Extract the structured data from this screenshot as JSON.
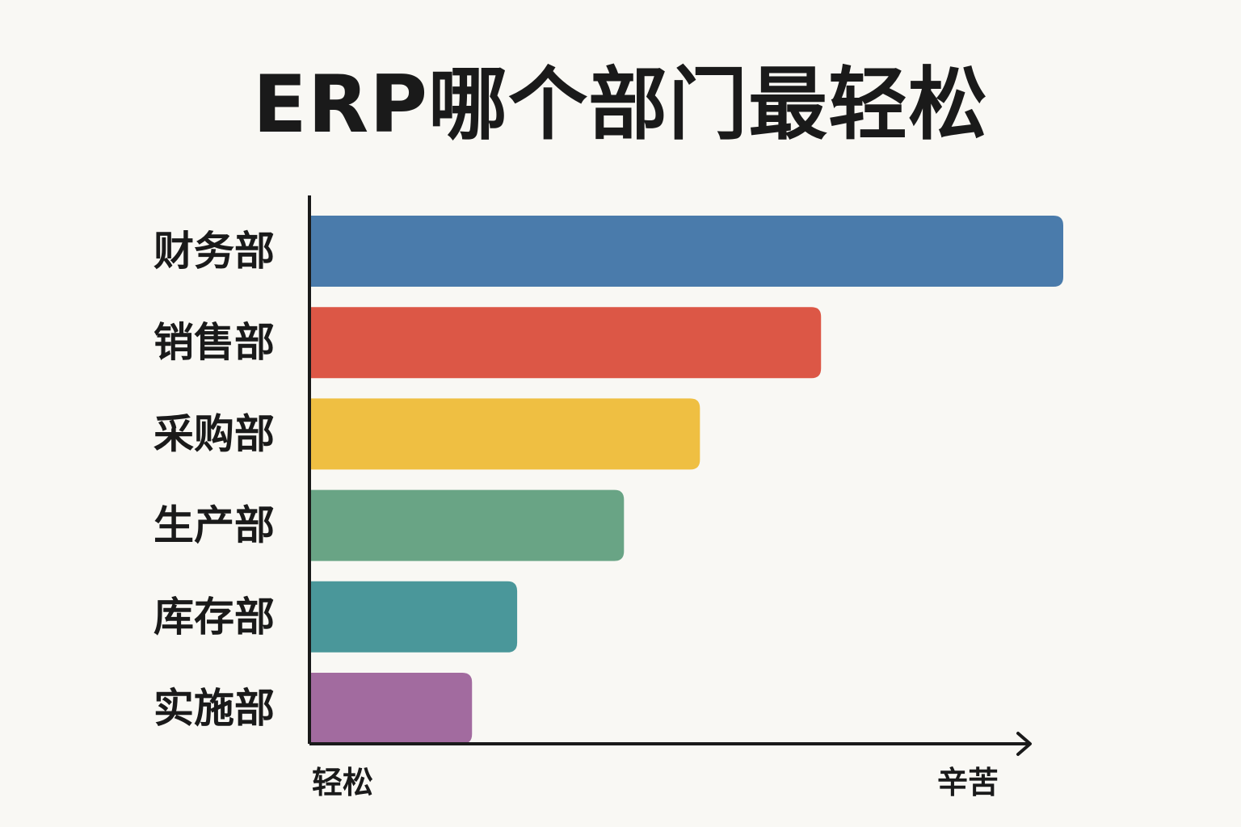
{
  "chart_data": {
    "type": "bar",
    "orientation": "horizontal",
    "title": "ERP哪个部门最轻松",
    "categories": [
      "财务部",
      "销售部",
      "采购部",
      "生产部",
      "库存部",
      "实施部"
    ],
    "values": [
      100,
      67.8,
      51.7,
      41.6,
      27.4,
      21.4
    ],
    "colors": [
      "#4a7bab",
      "#dc5746",
      "#efbf42",
      "#69a485",
      "#4a979a",
      "#a26b9f"
    ],
    "x_axis": {
      "start_label": "轻松",
      "end_label": "辛苦",
      "range": [
        0,
        100
      ],
      "ticks": false
    },
    "grid": false,
    "legend": "none"
  }
}
